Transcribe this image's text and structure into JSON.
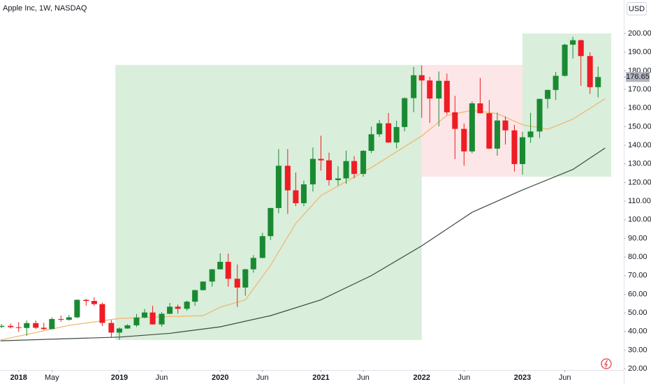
{
  "chart_data": {
    "type": "candlestick",
    "title": "Apple Inc, 1W, NASDAQ",
    "currency": "USD",
    "x": [
      2017.83,
      2017.92,
      2018,
      2018.08,
      2018.17,
      2018.25,
      2018.33,
      2018.42,
      2018.5,
      2018.58,
      2018.67,
      2018.75,
      2018.83,
      2018.92,
      2019,
      2019.08,
      2019.17,
      2019.25,
      2019.33,
      2019.42,
      2019.5,
      2019.58,
      2019.67,
      2019.75,
      2019.83,
      2019.92,
      2020,
      2020.08,
      2020.17,
      2020.25,
      2020.33,
      2020.42,
      2020.5,
      2020.58,
      2020.67,
      2020.75,
      2020.83,
      2020.92,
      2021,
      2021.08,
      2021.17,
      2021.25,
      2021.33,
      2021.42,
      2021.5,
      2021.58,
      2021.67,
      2021.75,
      2021.83,
      2021.92,
      2022,
      2022.08,
      2022.17,
      2022.25,
      2022.33,
      2022.42,
      2022.5,
      2022.58,
      2022.67,
      2022.75,
      2022.83,
      2022.92,
      2023,
      2023.08,
      2023.17,
      2023.25,
      2023.33,
      2023.42,
      2023.5,
      2023.58,
      2023.67,
      2023.75
    ],
    "open": [
      42.5,
      43,
      42.3,
      41.9,
      44.5,
      42,
      41.3,
      46.7,
      46.3,
      47.6,
      57,
      56.4,
      54.7,
      44.6,
      39.4,
      41.6,
      43.3,
      47.5,
      50.2,
      43.8,
      49.5,
      53.3,
      52.2,
      56,
      62.2,
      66.8,
      73.4,
      77.4,
      68.3,
      63.6,
      73.4,
      79.5,
      91.2,
      106.3,
      129,
      115.8,
      108.9,
      119,
      132.7,
      131.9,
      121.3,
      122.2,
      131.5,
      124.6,
      137,
      145.9,
      151.8,
      141.5,
      149.8,
      165.3,
      177.6,
      174.8,
      165.1,
      174.6,
      157.7,
      148.8,
      136.7,
      162.5,
      157.2,
      138.2,
      153.3,
      148,
      129.9,
      144.3,
      147.4,
      164.9,
      169.7,
      177.3,
      194,
      196.4,
      187.9,
      171.2
    ],
    "high": [
      44.1,
      44.3,
      45,
      45.9,
      45.9,
      44.7,
      47.6,
      48.6,
      48.9,
      57.2,
      57.4,
      58.4,
      55.6,
      46.2,
      42.2,
      43.9,
      49.4,
      52.1,
      53.8,
      50.4,
      55.3,
      54.5,
      56.6,
      62.4,
      66.9,
      73.5,
      81.9,
      81.8,
      76,
      73.6,
      81,
      93,
      106.4,
      137.9,
      137.98,
      125.4,
      121,
      138.8,
      145.1,
      136,
      128.7,
      137.1,
      134.1,
      137.4,
      150,
      153.5,
      157.3,
      153.2,
      165.7,
      182.1,
      182.9,
      176.7,
      179.6,
      178.5,
      166.5,
      151.7,
      163.6,
      176.2,
      164.3,
      157.5,
      155.5,
      150.9,
      147.2,
      157.4,
      165,
      169.9,
      179.4,
      194.5,
      198.2,
      196.7,
      189.9,
      182.3
    ],
    "low": [
      41.8,
      41.6,
      39.8,
      37.6,
      41.2,
      40.7,
      41.2,
      45.2,
      45.7,
      47.1,
      53.8,
      53.8,
      42.9,
      36.6,
      35.5,
      41.5,
      42.4,
      47.1,
      43.7,
      42.6,
      49.3,
      49.6,
      51.1,
      53.8,
      62,
      64.1,
      73.2,
      64.1,
      53.2,
      59.2,
      71.6,
      79.3,
      89.1,
      103.5,
      103.1,
      107.3,
      107.3,
      115.2,
      126.4,
      118.4,
      118.4,
      119.2,
      122.3,
      123.1,
      135.8,
      144.5,
      141.3,
      138.3,
      147.5,
      157.8,
      154.7,
      152,
      150.1,
      156.4,
      132.6,
      129,
      135.7,
      157.1,
      138,
      134.4,
      140.4,
      125.9,
      124.2,
      141.3,
      143.9,
      159.8,
      164.3,
      176.9,
      186.6,
      171.96,
      167.6,
      165.7
    ],
    "close": [
      43,
      42.3,
      41.9,
      44.5,
      42,
      41.3,
      46.7,
      46.3,
      47.6,
      57,
      56.4,
      54.7,
      44.6,
      39.4,
      41.6,
      43.3,
      47.5,
      50.2,
      43.8,
      49.5,
      53.3,
      52.2,
      56,
      62.2,
      66.8,
      73.4,
      77.4,
      68.3,
      63.6,
      73.4,
      79.5,
      91.2,
      106.3,
      129,
      115.8,
      108.9,
      119,
      132.7,
      131.9,
      121.3,
      122.2,
      131.5,
      124.6,
      137,
      145.9,
      151.8,
      141.5,
      149.8,
      165.3,
      177.6,
      174.8,
      165.1,
      174.6,
      157.7,
      148.8,
      136.7,
      162.5,
      157.2,
      138.2,
      153.3,
      148,
      129.9,
      144.3,
      147.4,
      164.9,
      169.7,
      177.3,
      194,
      196.4,
      187.9,
      171.2,
      176.65
    ],
    "up_color": "#1a8a32",
    "down_color": "#ee1c24",
    "series": [
      {
        "color": "#f2b56b",
        "x": [
          2017.82,
          2018.5,
          2019,
          2019.5,
          2019.83,
          2020,
          2020.25,
          2020.5,
          2020.75,
          2021,
          2021.5,
          2022,
          2022.25,
          2022.5,
          2022.75,
          2023,
          2023.25,
          2023.5,
          2023.82
        ],
        "values": [
          35.4,
          43.3,
          47,
          48,
          48.5,
          53,
          57,
          75.5,
          98,
          113,
          128,
          145,
          156,
          158.8,
          157,
          151,
          148.6,
          154,
          165
        ]
      },
      {
        "color": "#3d4a40",
        "x": [
          2017.82,
          2019,
          2019.5,
          2020,
          2020.5,
          2021,
          2021.5,
          2022,
          2022.5,
          2023,
          2023.5,
          2023.82
        ],
        "values": [
          35,
          37,
          39,
          42.5,
          48.5,
          57,
          70,
          86,
          104,
          116,
          127,
          138.5
        ]
      }
    ],
    "zones": [
      {
        "color": "#d9eedb",
        "xlim": [
          2018.96,
          2022.0
        ],
        "ylim": [
          35.4,
          183.1
        ]
      },
      {
        "color": "#fce6e7",
        "xlim": [
          2022.0,
          2023.0
        ],
        "ylim": [
          123.1,
          183.1
        ]
      },
      {
        "color": "#d9eedb",
        "xlim": [
          2023.0,
          2023.88
        ],
        "ylim": [
          123.1,
          200
        ]
      }
    ],
    "last_price": 176.65,
    "grid": false,
    "xlim": [
      2017.815,
      2024.005
    ],
    "ylim": [
      19.3,
      218
    ],
    "xticks": [
      {
        "value": 2018,
        "label": "2018"
      },
      {
        "value": 2018.33,
        "label": "May"
      },
      {
        "value": 2019,
        "label": "2019"
      },
      {
        "value": 2019.42,
        "label": "Jun"
      },
      {
        "value": 2020,
        "label": "2020"
      },
      {
        "value": 2020.42,
        "label": "Jun"
      },
      {
        "value": 2021,
        "label": "2021"
      },
      {
        "value": 2021.42,
        "label": "Jun"
      },
      {
        "value": 2022,
        "label": "2022"
      },
      {
        "value": 2022.42,
        "label": "Jun"
      },
      {
        "value": 2023,
        "label": "2023"
      },
      {
        "value": 2023.42,
        "label": "Jun"
      }
    ],
    "yticks": [
      {
        "value": 20,
        "label": "20.00"
      },
      {
        "value": 30,
        "label": "30.00"
      },
      {
        "value": 40,
        "label": "40.00"
      },
      {
        "value": 50,
        "label": "50.00"
      },
      {
        "value": 60,
        "label": "60.00"
      },
      {
        "value": 70,
        "label": "70.00"
      },
      {
        "value": 80,
        "label": "80.00"
      },
      {
        "value": 90,
        "label": "90.00"
      },
      {
        "value": 100,
        "label": "100.00"
      },
      {
        "value": 110,
        "label": "110.00"
      },
      {
        "value": 120,
        "label": "120.00"
      },
      {
        "value": 130,
        "label": "130.00"
      },
      {
        "value": 140,
        "label": "140.00"
      },
      {
        "value": 150,
        "label": "150.00"
      },
      {
        "value": 160,
        "label": "160.00"
      },
      {
        "value": 170,
        "label": "170.00"
      },
      {
        "value": 180,
        "label": "180.00"
      },
      {
        "value": 190,
        "label": "190.00"
      },
      {
        "value": 200,
        "label": "200.00"
      }
    ]
  }
}
